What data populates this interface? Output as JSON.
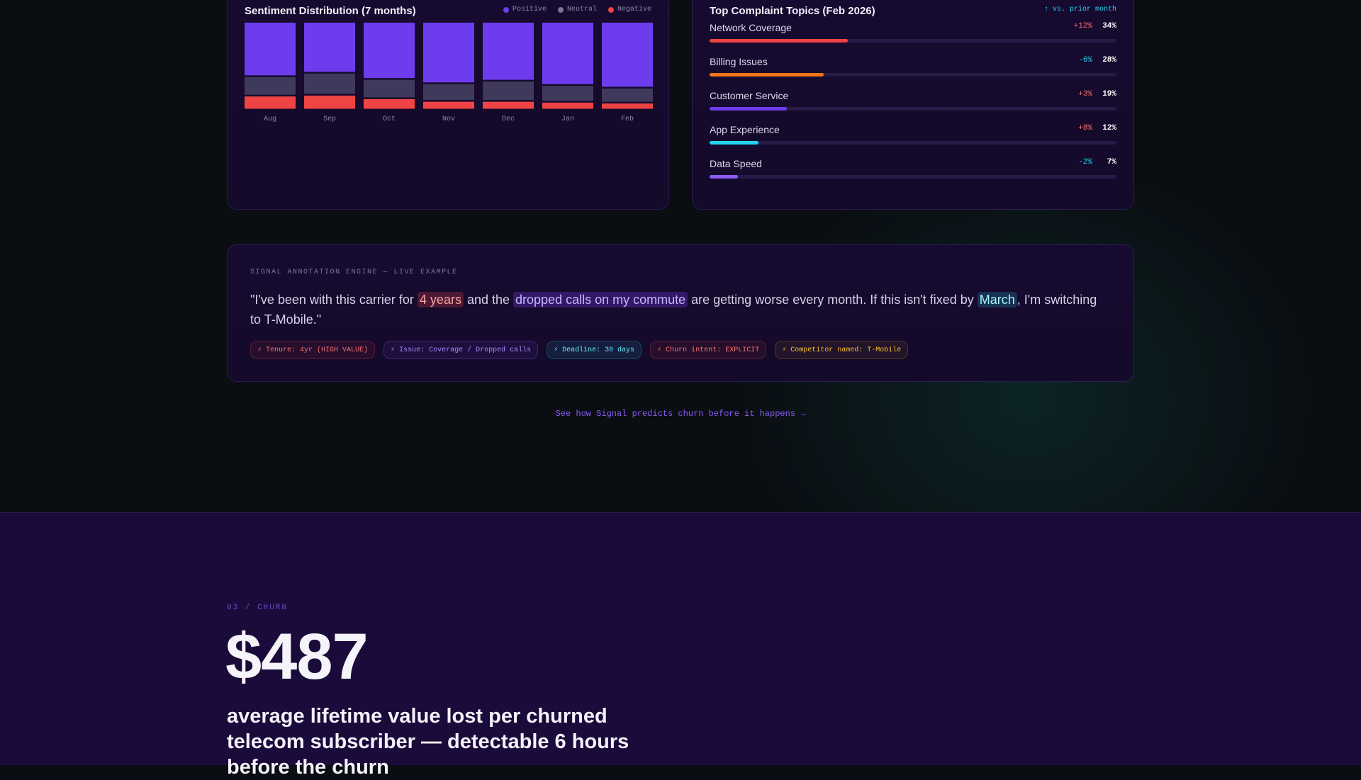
{
  "sentiment": {
    "title": "Sentiment Distribution (7 months)",
    "legend": [
      {
        "label": "Positive",
        "color": "#6d3ded"
      },
      {
        "label": "Neutral",
        "color": "#4b4766"
      },
      {
        "label": "Negative",
        "color": "#ef4444"
      }
    ]
  },
  "chart_data": {
    "type": "bar",
    "stacked": true,
    "title": "Sentiment Distribution (7 months)",
    "categories": [
      "Aug",
      "Sep",
      "Oct",
      "Nov",
      "Dec",
      "Jan",
      "Feb"
    ],
    "series": [
      {
        "name": "Positive",
        "color": "#6d3ded",
        "values": [
          62,
          58,
          65,
          70,
          67,
          72,
          75
        ]
      },
      {
        "name": "Neutral",
        "color": "#3f3a5c",
        "values": [
          22,
          25,
          22,
          20,
          23,
          19,
          17
        ]
      },
      {
        "name": "Negative",
        "color": "#ef4444",
        "values": [
          16,
          17,
          13,
          10,
          10,
          9,
          8
        ]
      }
    ],
    "ylim": [
      0,
      100
    ],
    "legend_position": "top-right"
  },
  "complaints": {
    "title": "Top Complaint Topics (Feb 2026)",
    "vs_label": "↑ vs. prior month",
    "items": [
      {
        "label": "Network Coverage",
        "change": "+12%",
        "pct": "34%",
        "value": 34,
        "color": "#ef4444",
        "change_color": "#f87171"
      },
      {
        "label": "Billing Issues",
        "change": "-6%",
        "pct": "28%",
        "value": 28,
        "color": "#f97316",
        "change_color": "#22d3ee"
      },
      {
        "label": "Customer Service",
        "change": "+3%",
        "pct": "19%",
        "value": 19,
        "color": "#6d3ded",
        "change_color": "#f87171"
      },
      {
        "label": "App Experience",
        "change": "+8%",
        "pct": "12%",
        "value": 12,
        "color": "#22d3ee",
        "change_color": "#f87171"
      },
      {
        "label": "Data Speed",
        "change": "-2%",
        "pct": "7%",
        "value": 7,
        "color": "#8b5cf6",
        "change_color": "#22d3ee"
      }
    ]
  },
  "annotation": {
    "label": "SIGNAL ANNOTATION ENGINE — LIVE EXAMPLE",
    "quote": {
      "t1": "\"I've been with this carrier for ",
      "h1": "4 years",
      "t2": " and the ",
      "h2": "dropped calls on my commute",
      "t3": " are getting worse every month. If this isn't fixed by ",
      "h3": "March",
      "t4": ", I'm switching to T-Mobile.\""
    },
    "tags": [
      {
        "text": "⚡ Tenure: 4yr (HIGH VALUE)",
        "style": "red"
      },
      {
        "text": "⚡ Issue: Coverage / Dropped calls",
        "style": "purple"
      },
      {
        "text": "⚡ Deadline: 30 days",
        "style": "cyan"
      },
      {
        "text": "⚡ Churn intent: EXPLICIT",
        "style": "red"
      },
      {
        "text": "⚡ Competitor named: T-Mobile",
        "style": "amber"
      }
    ]
  },
  "cta": "See how Signal predicts churn before it happens →",
  "churn": {
    "eyebrow": "03 / CHURN",
    "figure": "$487",
    "subtitle": "average lifetime value lost per churned telecom subscriber — detectable 6 hours before the churn"
  }
}
